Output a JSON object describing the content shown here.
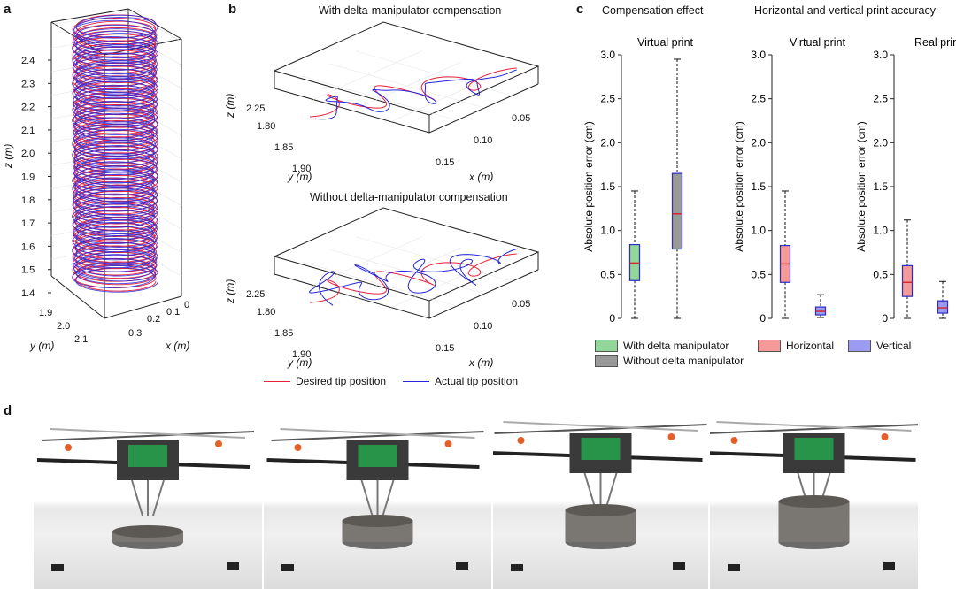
{
  "panels": {
    "a": "a",
    "b": "b",
    "c": "c",
    "d": "d"
  },
  "panel_a": {
    "z_axis_label": "z (m)",
    "y_axis_label": "y (m)",
    "x_axis_label": "x (m)",
    "z_ticks": [
      "2.4",
      "2.3",
      "2.2",
      "2.1",
      "2.0",
      "1.9",
      "1.8",
      "1.7",
      "1.6",
      "1.5",
      "1.4"
    ],
    "y_ticks": [
      "1.9",
      "2.0",
      "2.1"
    ],
    "x_ticks": [
      "0",
      "0.1",
      "0.2",
      "0.3"
    ],
    "colors": {
      "desired": "#e8203a",
      "actual": "#2626d9"
    }
  },
  "panel_b": {
    "title_top": "With delta-manipulator compensation",
    "title_bottom": "Without delta-manipulator compensation",
    "z_label": "z (m)",
    "z_tick": "2.25",
    "y_label": "y (m)",
    "y_ticks": [
      "1.80",
      "1.85",
      "1.90"
    ],
    "x_label": "x (m)",
    "x_ticks": [
      "0.05",
      "0.10",
      "0.15"
    ],
    "legend": {
      "desired": "Desired tip position",
      "actual": "Actual tip position"
    },
    "colors": {
      "desired": "#e8203a",
      "actual": "#2626d9"
    }
  },
  "panel_c": {
    "heading_left": "Compensation effect",
    "heading_right": "Horizontal and vertical print accuracy",
    "legend": {
      "with_delta": "With delta manipulator",
      "without_delta": "Without delta manipulator",
      "horizontal": "Horizontal",
      "vertical": "Vertical"
    },
    "colors": {
      "with_delta": "#93d69a",
      "without_delta": "#9a9a9a",
      "horizontal": "#f59a9a",
      "vertical": "#9b9bf2",
      "median": "#d6282f",
      "whisker_box": "#2a2acf"
    }
  },
  "chart_data": [
    {
      "type": "box",
      "title": "Virtual print",
      "ylabel": "Absolute position error (cm)",
      "ylim": [
        0,
        3.0
      ],
      "yticks": [
        "0",
        "0.5",
        "1.0",
        "1.5",
        "2.0",
        "2.5",
        "3.0"
      ],
      "series": [
        {
          "name": "With delta manipulator",
          "min": 0,
          "q1": 0.43,
          "median": 0.63,
          "q3": 0.84,
          "max": 1.45
        },
        {
          "name": "Without delta manipulator",
          "min": 0,
          "q1": 0.79,
          "median": 1.19,
          "q3": 1.65,
          "max": 2.95
        }
      ]
    },
    {
      "type": "box",
      "title": "Virtual print",
      "ylabel": "Absolute position error (cm)",
      "ylim": [
        0,
        3.0
      ],
      "yticks": [
        "0",
        "0.5",
        "1.0",
        "1.5",
        "2.0",
        "2.5",
        "3.0"
      ],
      "series": [
        {
          "name": "Horizontal",
          "min": 0,
          "q1": 0.41,
          "median": 0.62,
          "q3": 0.83,
          "max": 1.45
        },
        {
          "name": "Vertical",
          "min": 0.01,
          "q1": 0.04,
          "median": 0.08,
          "q3": 0.13,
          "max": 0.27
        }
      ]
    },
    {
      "type": "box",
      "title": "Real print",
      "ylabel": "Absolute position error (cm)",
      "ylim": [
        0,
        3.0
      ],
      "yticks": [
        "0",
        "0.5",
        "1.0",
        "1.5",
        "2.0",
        "2.5",
        "3.0"
      ],
      "series": [
        {
          "name": "Horizontal",
          "min": 0,
          "q1": 0.25,
          "median": 0.41,
          "q3": 0.6,
          "max": 1.12
        },
        {
          "name": "Vertical",
          "min": 0,
          "q1": 0.06,
          "median": 0.12,
          "q3": 0.2,
          "max": 0.42
        }
      ]
    }
  ]
}
